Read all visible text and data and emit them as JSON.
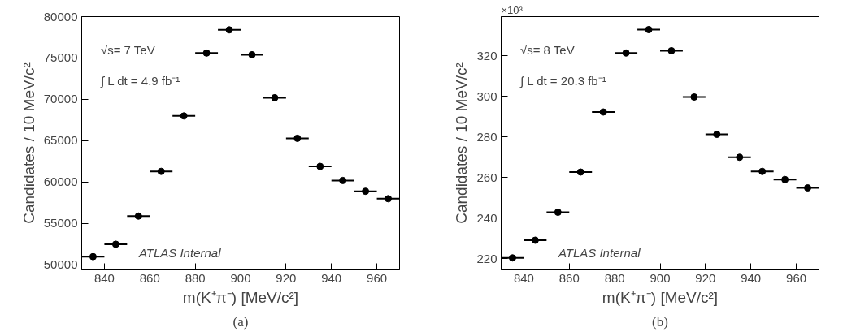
{
  "chart_data": [
    {
      "type": "scatter",
      "xlabel": "m(K⁺π⁻) [MeV/c²]",
      "ylabel": "Candidates / 10 MeV/c²",
      "x": [
        835,
        845,
        855,
        865,
        875,
        885,
        895,
        905,
        915,
        925,
        935,
        945,
        955,
        965
      ],
      "values": [
        51000,
        52500,
        55900,
        61300,
        68000,
        75600,
        78400,
        75400,
        70200,
        65300,
        61900,
        60200,
        58900,
        58000
      ],
      "xerrors": [
        5,
        5,
        5,
        5,
        5,
        5,
        5,
        5,
        5,
        5,
        5,
        5,
        5,
        5
      ],
      "color": "#000000",
      "marker": "circle",
      "xlim": [
        830,
        970
      ],
      "ylim": [
        49400,
        80000
      ],
      "xticks": [
        840,
        860,
        880,
        900,
        920,
        940,
        960
      ],
      "yticks": [
        50000,
        55000,
        60000,
        65000,
        70000,
        75000,
        80000
      ],
      "grid": false,
      "annotations": [
        "√s= 7 TeV",
        "∫ L dt = 4.9 fb⁻¹",
        "ATLAS Internal",
        "(a)"
      ]
    },
    {
      "type": "scatter",
      "xlabel": "m(K⁺π⁻) [MeV/c²]",
      "ylabel": "Candidates / 10 MeV/c²",
      "x": [
        835,
        845,
        855,
        865,
        875,
        885,
        895,
        905,
        915,
        925,
        935,
        945,
        955,
        965
      ],
      "values": [
        220.3,
        229.0,
        242.8,
        262.6,
        292.2,
        321.3,
        332.8,
        322.4,
        299.6,
        281.2,
        269.9,
        262.9,
        258.9,
        254.8
      ],
      "xerrors": [
        5,
        5,
        5,
        5,
        5,
        5,
        5,
        5,
        5,
        5,
        5,
        5,
        5,
        5
      ],
      "color": "#000000",
      "marker": "circle",
      "xlim": [
        830,
        970
      ],
      "ylim": [
        214.4,
        339.2
      ],
      "xticks": [
        840,
        860,
        880,
        900,
        920,
        940,
        960
      ],
      "yticks": [
        220,
        240,
        260,
        280,
        300,
        320
      ],
      "grid": false,
      "annotations": [
        "√s= 8 TeV",
        "∫ L dt = 20.3 fb⁻¹",
        "ATLAS Internal",
        "(b)",
        "×10³"
      ]
    }
  ]
}
